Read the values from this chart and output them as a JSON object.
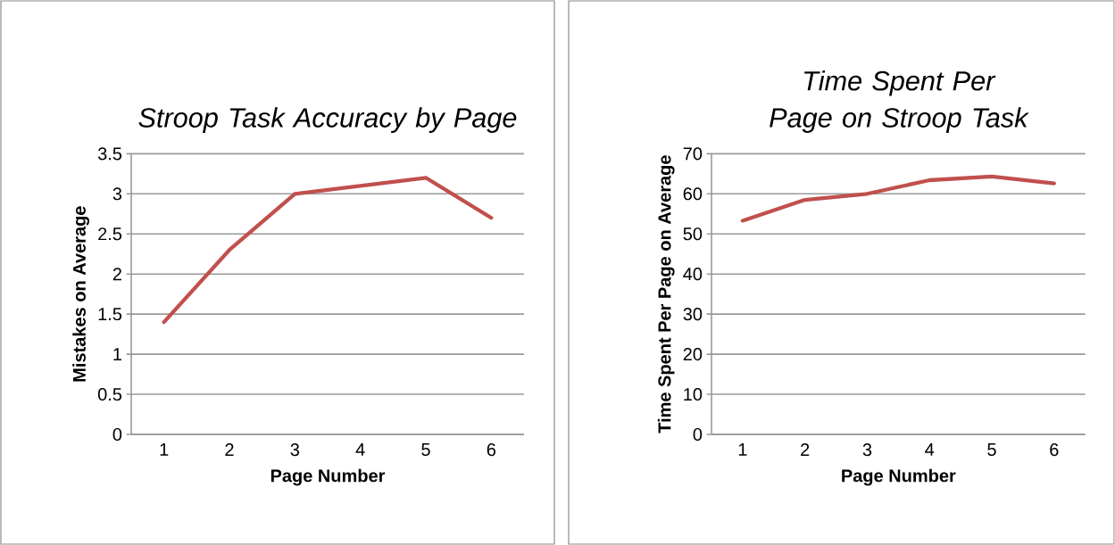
{
  "chart_data": [
    {
      "type": "line",
      "title": "Stroop Task Accuracy by Page",
      "xlabel": "Page Number",
      "ylabel": "Mistakes on Average",
      "categories": [
        "1",
        "2",
        "3",
        "4",
        "5",
        "6"
      ],
      "series": [
        {
          "color": "#c0504d",
          "values": [
            1.4,
            2.3,
            3.0,
            3.1,
            3.2,
            2.7
          ]
        }
      ],
      "ylim": [
        0,
        3.5
      ],
      "yticks": [
        0,
        0.5,
        1,
        1.5,
        2,
        2.5,
        3,
        3.5
      ],
      "grid": "y",
      "marker": "none",
      "line_style": "solid"
    },
    {
      "type": "line",
      "title": "Time Spent Per Page on Stroop Task",
      "xlabel": "Page Number",
      "ylabel": "Time Spent Per Page on Average",
      "categories": [
        "1",
        "2",
        "3",
        "4",
        "5",
        "6"
      ],
      "series": [
        {
          "color": "#c0504d",
          "values": [
            53.3,
            58.5,
            60.0,
            63.4,
            64.3,
            62.6
          ]
        }
      ],
      "ylim": [
        0,
        70
      ],
      "yticks": [
        0,
        10,
        20,
        30,
        40,
        50,
        60,
        70
      ],
      "grid": "y",
      "marker": "none",
      "line_style": "solid"
    }
  ]
}
